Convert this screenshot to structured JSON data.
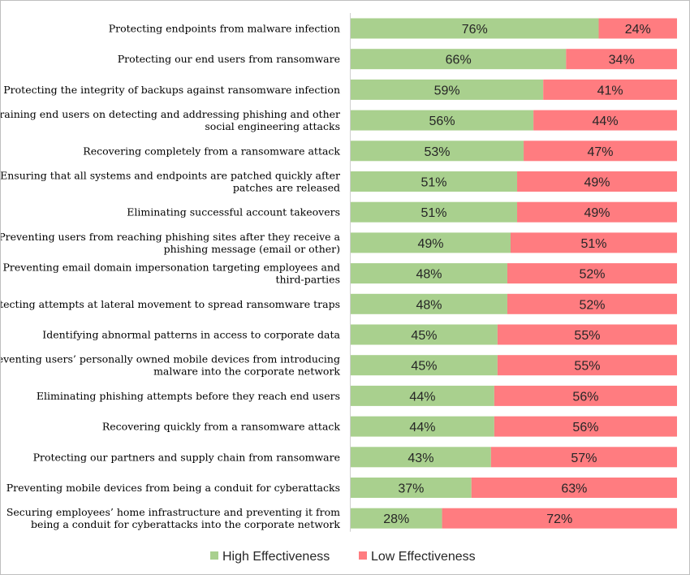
{
  "chart_data": {
    "type": "bar",
    "orientation": "horizontal",
    "stacked": true,
    "title": "",
    "xlabel": "",
    "ylabel": "",
    "xlim": [
      0,
      100
    ],
    "grid": false,
    "legend": "bottom",
    "categories": [
      [
        "Protecting endpoints from malware infection"
      ],
      [
        "Protecting our end users from ransomware"
      ],
      [
        "Protecting the integrity of backups against ransomware infection"
      ],
      [
        "Training end users on detecting and addressing phishing and other",
        "social engineering attacks"
      ],
      [
        "Recovering completely from a ransomware attack"
      ],
      [
        "Ensuring that all systems and endpoints are patched quickly after",
        "patches are released"
      ],
      [
        "Eliminating successful account takeovers"
      ],
      [
        "Preventing users from reaching phishing sites after they receive a",
        "phishing message (email or other)"
      ],
      [
        "Preventing email domain impersonation targeting employees and",
        "third-parties"
      ],
      [
        "Detecting attempts at lateral movement to spread ransomware traps"
      ],
      [
        "Identifying abnormal patterns in access to corporate data"
      ],
      [
        "Preventing users’ personally owned mobile devices from introducing",
        "malware into the corporate network"
      ],
      [
        "Eliminating phishing attempts before they reach end users"
      ],
      [
        "Recovering quickly from a ransomware attack"
      ],
      [
        "Protecting our partners and supply chain from ransomware"
      ],
      [
        "Preventing mobile devices from being a conduit for cyberattacks"
      ],
      [
        "Securing employees’ home infrastructure and preventing it from",
        "being a conduit for cyberattacks into the corporate network"
      ]
    ],
    "series": [
      {
        "name": "High Effectiveness",
        "color": "#a9d08e",
        "values": [
          76,
          66,
          59,
          56,
          53,
          51,
          51,
          49,
          48,
          48,
          45,
          45,
          44,
          44,
          43,
          37,
          28
        ],
        "labels": [
          "76%",
          "66%",
          "59%",
          "56%",
          "53%",
          "51%",
          "51%",
          "49%",
          "48%",
          "48%",
          "45%",
          "45%",
          "44%",
          "44%",
          "43%",
          "37%",
          "28%"
        ]
      },
      {
        "name": "Low Effectiveness",
        "color": "#ff7c80",
        "values": [
          24,
          34,
          41,
          44,
          47,
          49,
          49,
          51,
          52,
          52,
          55,
          55,
          56,
          56,
          57,
          63,
          72
        ],
        "labels": [
          "24%",
          "34%",
          "41%",
          "44%",
          "47%",
          "49%",
          "49%",
          "51%",
          "52%",
          "52%",
          "55%",
          "55%",
          "56%",
          "56%",
          "57%",
          "63%",
          "72%"
        ]
      }
    ]
  }
}
